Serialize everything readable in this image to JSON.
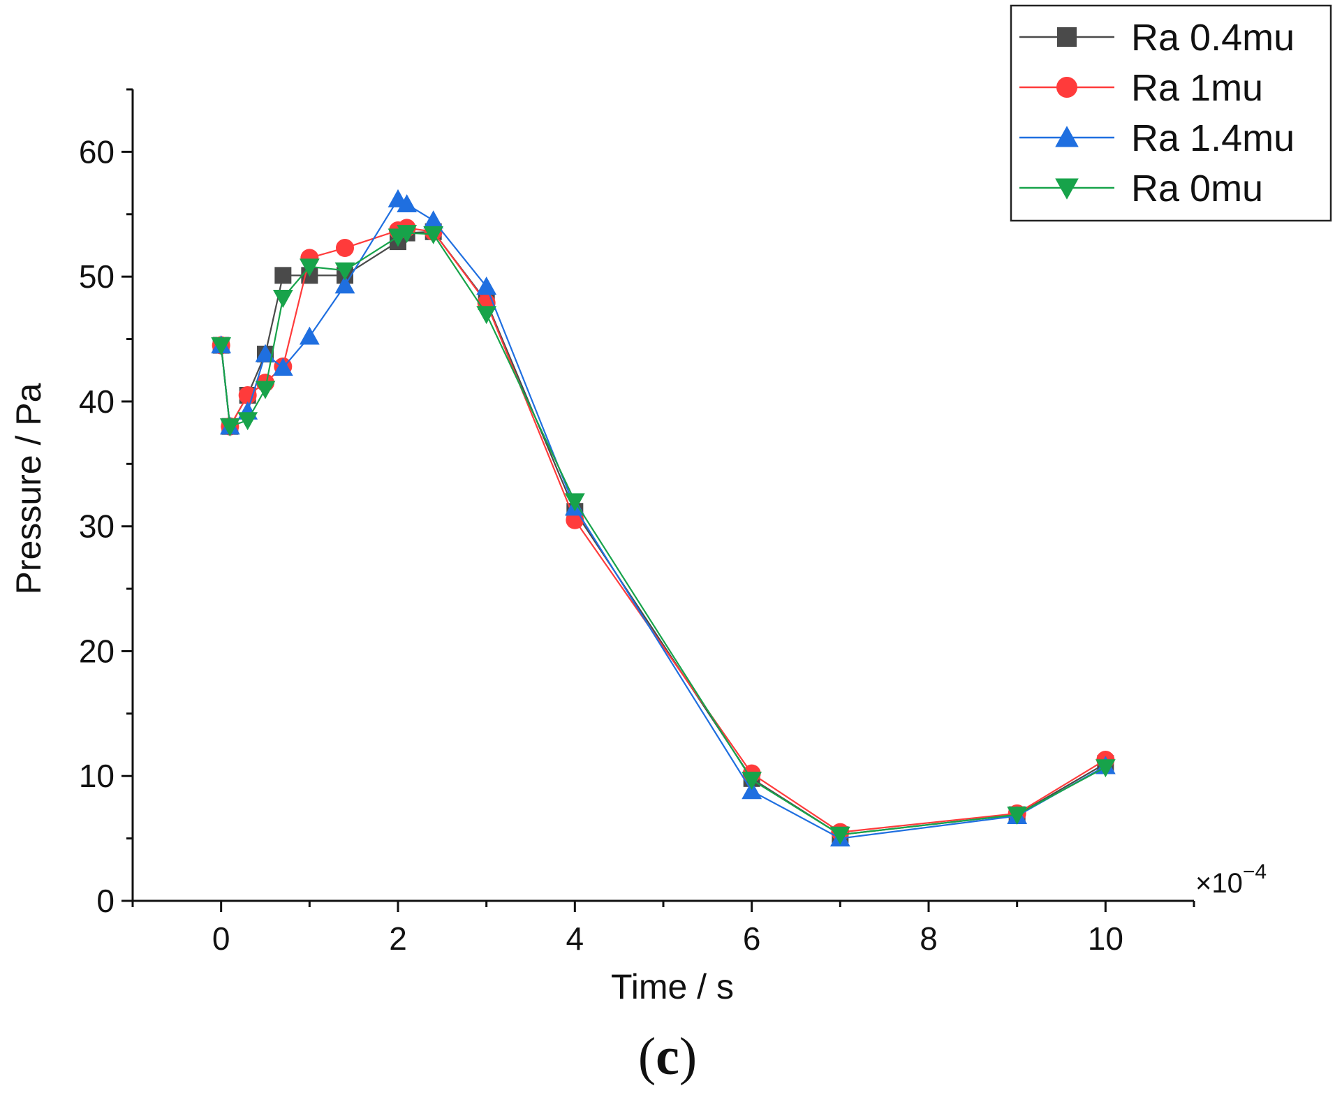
{
  "chart_data": {
    "type": "line",
    "xlabel": "Time / s",
    "ylabel": "Pressure / Pa",
    "x_multiplier": "×10",
    "x_multiplier_exponent": "−4",
    "xlim": [
      -1,
      11
    ],
    "ylim": [
      0,
      65
    ],
    "x_ticks": [
      0,
      2,
      4,
      6,
      8,
      10
    ],
    "y_ticks": [
      0,
      10,
      20,
      30,
      40,
      50,
      60
    ],
    "legend_position": "top-right",
    "series": [
      {
        "name": "Ra 0.4mu",
        "color": "#4a4a4a",
        "marker": "square",
        "x": [
          0,
          0.1,
          0.3,
          0.5,
          0.7,
          1.0,
          1.4,
          2.0,
          2.1,
          2.4,
          3.0,
          4.0,
          6.0,
          7.0,
          9.0,
          10.0
        ],
        "y": [
          44.5,
          38.0,
          40.5,
          43.8,
          50.1,
          50.1,
          50.1,
          52.8,
          53.5,
          53.6,
          48.0,
          31.2,
          9.8,
          5.3,
          6.9,
          11.0
        ]
      },
      {
        "name": "Ra 1mu",
        "color": "#ff3b3b",
        "marker": "circle",
        "x": [
          0,
          0.1,
          0.3,
          0.5,
          0.7,
          1.0,
          1.4,
          2.0,
          2.1,
          2.4,
          3.0,
          4.0,
          6.0,
          7.0,
          9.0,
          10.0
        ],
        "y": [
          44.5,
          38.0,
          40.5,
          41.5,
          42.8,
          51.5,
          52.3,
          53.7,
          53.9,
          53.6,
          47.9,
          30.5,
          10.2,
          5.5,
          7.0,
          11.3
        ]
      },
      {
        "name": "Ra 1.4mu",
        "color": "#1f6fe0",
        "marker": "triangle-up",
        "x": [
          0,
          0.1,
          0.3,
          0.5,
          0.7,
          1.0,
          1.4,
          2.0,
          2.1,
          2.4,
          3.0,
          4.0,
          6.0,
          7.0,
          9.0,
          10.0
        ],
        "y": [
          44.5,
          38.0,
          39.2,
          43.8,
          42.7,
          45.2,
          49.3,
          56.2,
          55.8,
          54.5,
          49.2,
          31.5,
          8.8,
          5.0,
          6.8,
          10.8
        ]
      },
      {
        "name": "Ra 0mu",
        "color": "#17a34a",
        "marker": "triangle-down",
        "x": [
          0,
          0.1,
          0.3,
          0.5,
          0.7,
          1.0,
          1.4,
          2.0,
          2.1,
          2.4,
          3.0,
          4.0,
          6.0,
          7.0,
          9.0,
          10.0
        ],
        "y": [
          44.5,
          38.0,
          38.5,
          41.0,
          48.3,
          50.8,
          50.5,
          53.2,
          53.5,
          53.4,
          47.0,
          32.0,
          9.7,
          5.3,
          6.9,
          10.7
        ]
      }
    ]
  },
  "caption": {
    "open": "(",
    "letter": "c",
    "close": ")"
  }
}
